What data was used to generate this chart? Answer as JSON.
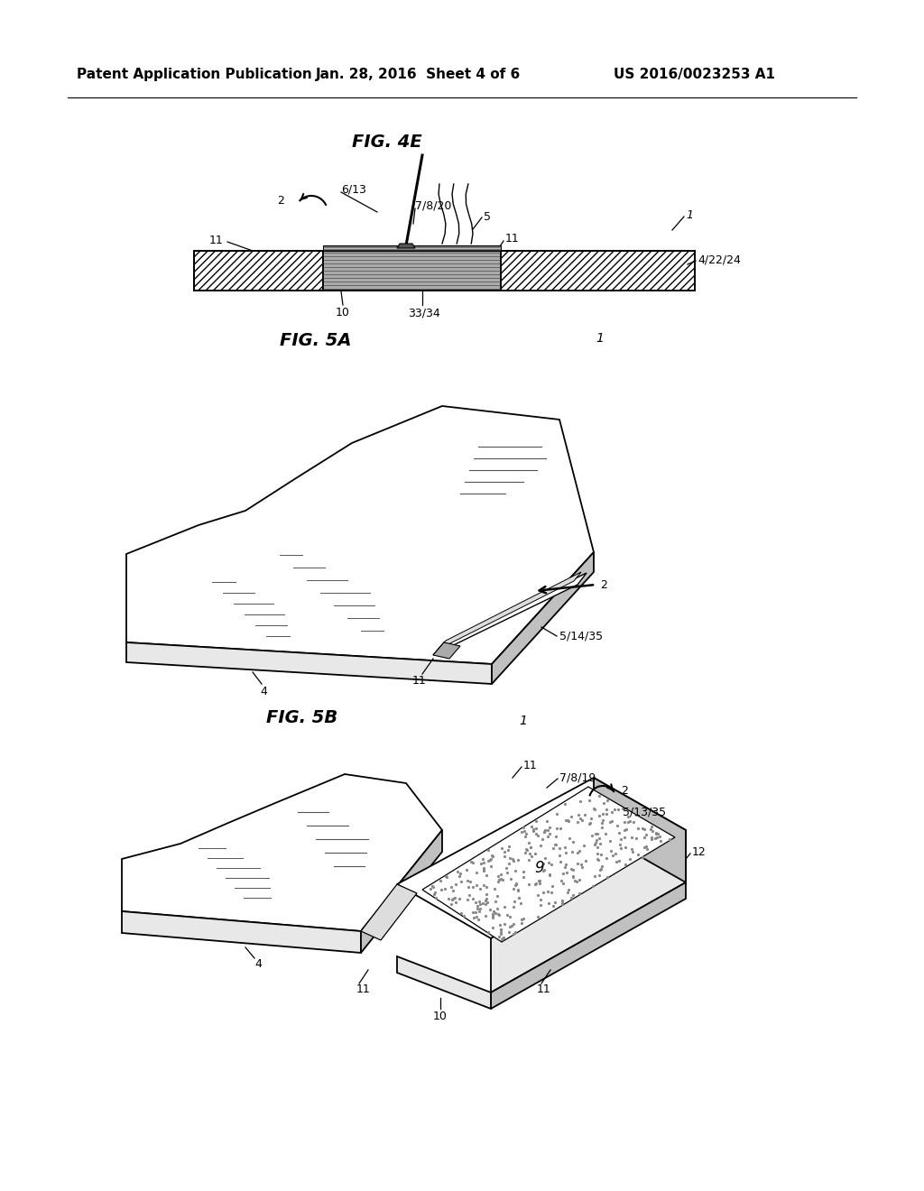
{
  "bg_color": "#ffffff",
  "black": "#000000",
  "gray_light": "#e8e8e8",
  "gray_mid": "#c0c0c0",
  "gray_dark": "#888888",
  "header_left": "Patent Application Publication",
  "header_center": "Jan. 28, 2016  Sheet 4 of 6",
  "header_right": "US 2016/0023253 A1",
  "fig4e_label": "FIG. 4E",
  "fig5a_label": "FIG. 5A",
  "fig5b_label": "FIG. 5B"
}
